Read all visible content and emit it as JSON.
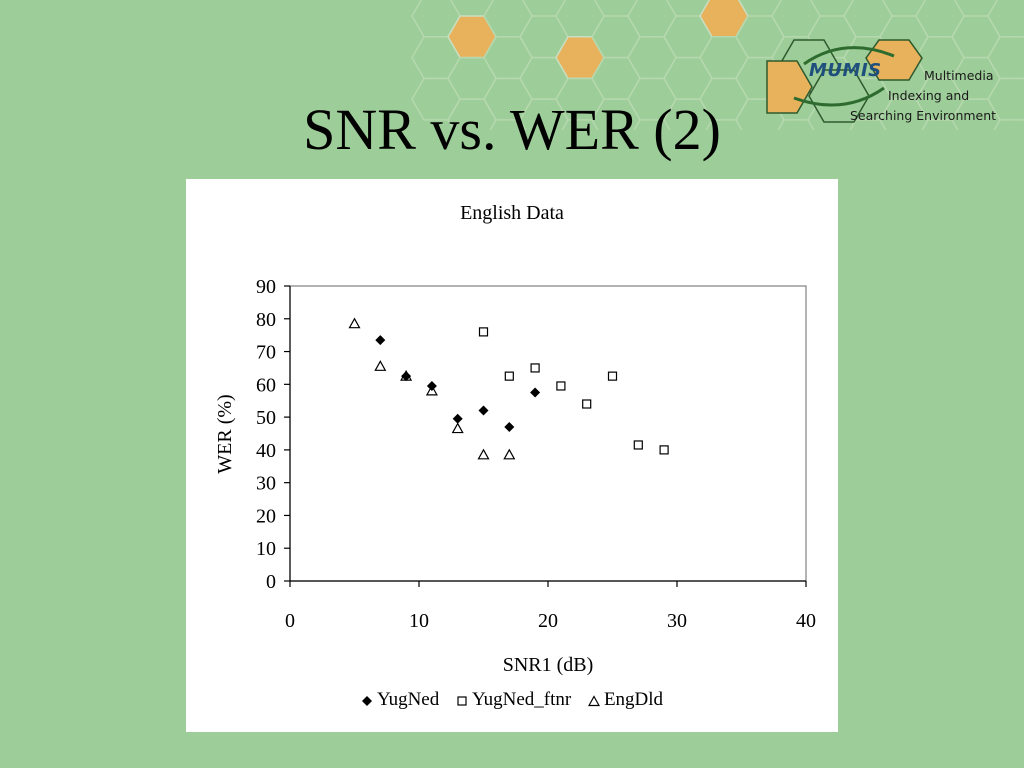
{
  "slide": {
    "title": "SNR vs. WER (2)"
  },
  "logo": {
    "mark": "MUMIS",
    "lines": [
      "Multimedia",
      "Indexing and",
      "Searching Environment"
    ]
  },
  "colors": {
    "background": "#9dcd98",
    "hex_orange": "#e8b25c",
    "hex_stroke": "#b6d8ae"
  },
  "chart_data": {
    "type": "scatter",
    "title": "English Data",
    "xlabel": "SNR1 (dB)",
    "ylabel": "WER (%)",
    "xlim": [
      0,
      40
    ],
    "ylim": [
      0,
      90
    ],
    "xticks": [
      0,
      10,
      20,
      30,
      40
    ],
    "yticks": [
      0,
      10,
      20,
      30,
      40,
      50,
      60,
      70,
      80,
      90
    ],
    "grid": false,
    "legend_position": "bottom",
    "series": [
      {
        "name": "YugNed",
        "marker": "diamond-filled",
        "points": [
          [
            7,
            73.5
          ],
          [
            9,
            62.5
          ],
          [
            11,
            59.5
          ],
          [
            13,
            49.5
          ],
          [
            15,
            52
          ],
          [
            17,
            47
          ],
          [
            19,
            57.5
          ]
        ]
      },
      {
        "name": "YugNed_ftnr",
        "marker": "square-open",
        "points": [
          [
            15,
            76
          ],
          [
            17,
            62.5
          ],
          [
            19,
            65
          ],
          [
            21,
            59.5
          ],
          [
            23,
            54
          ],
          [
            25,
            62.5
          ],
          [
            27,
            41.5
          ],
          [
            29,
            40
          ]
        ]
      },
      {
        "name": "EngDld",
        "marker": "triangle-open",
        "points": [
          [
            5,
            78.5
          ],
          [
            7,
            65.5
          ],
          [
            9,
            62.5
          ],
          [
            11,
            58
          ],
          [
            13,
            46.5
          ],
          [
            15,
            38.5
          ],
          [
            17,
            38.5
          ]
        ]
      }
    ]
  }
}
